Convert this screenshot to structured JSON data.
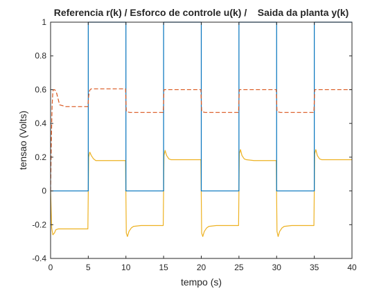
{
  "chart_data": {
    "type": "line",
    "title": "Referencia r(k) / Esforco de controle u(k) /    Saida da planta y(k)",
    "xlabel": "tempo (s)",
    "ylabel": "tensao (Volts)",
    "xlim": [
      0,
      40
    ],
    "ylim": [
      -0.4,
      1
    ],
    "xticks": [
      0,
      5,
      10,
      15,
      20,
      25,
      30,
      35,
      40
    ],
    "xtick_labels": [
      "0",
      "5",
      "10",
      "15",
      "20",
      "25",
      "30",
      "35",
      "40"
    ],
    "yticks": [
      -0.4,
      -0.2,
      0,
      0.2,
      0.4,
      0.6,
      0.8,
      1
    ],
    "ytick_labels": [
      "-0.4",
      "-0.2",
      "0",
      "0.2",
      "0.4",
      "0.6",
      "0.8",
      "1"
    ],
    "grid": false,
    "series": [
      {
        "name": "r(k)",
        "color": "#0072BD",
        "style": "solid",
        "x": [
          0,
          5,
          5,
          10,
          10,
          15,
          15,
          20,
          20,
          25,
          25,
          30,
          30,
          35,
          35,
          40
        ],
        "y": [
          0,
          0,
          1,
          1,
          0,
          0,
          1,
          1,
          0,
          0,
          1,
          1,
          0,
          0,
          1,
          1
        ]
      },
      {
        "name": "u(k)",
        "color": "#D95319",
        "style": "dashed",
        "x": [
          0,
          0.1,
          0.2,
          0.3,
          0.4,
          0.55,
          0.8,
          1.2,
          2,
          3,
          4,
          4.95,
          5.05,
          5.15,
          5.25,
          5.4,
          6,
          7,
          8,
          9,
          9.95,
          10.05,
          10.5,
          11,
          12,
          13,
          14,
          14.95,
          15.05,
          15.5,
          16,
          17,
          18,
          19,
          19.95,
          20.05,
          20.5,
          21,
          22,
          23,
          24,
          24.95,
          25.05,
          25.5,
          26,
          27,
          28,
          29,
          29.95,
          30.05,
          30.5,
          31,
          32,
          33,
          34,
          34.95,
          35.05,
          35.5,
          36,
          37,
          38,
          39,
          39.95,
          40
        ],
        "y": [
          0,
          0.3,
          0.5,
          0.59,
          0.6,
          0.6,
          0.58,
          0.51,
          0.5,
          0.5,
          0.5,
          0.5,
          0.56,
          0.59,
          0.6,
          0.605,
          0.605,
          0.605,
          0.605,
          0.605,
          0.605,
          0.47,
          0.465,
          0.465,
          0.465,
          0.465,
          0.465,
          0.465,
          0.6,
          0.6,
          0.6,
          0.6,
          0.6,
          0.6,
          0.6,
          0.47,
          0.465,
          0.465,
          0.465,
          0.465,
          0.465,
          0.465,
          0.6,
          0.6,
          0.6,
          0.6,
          0.6,
          0.6,
          0.6,
          0.47,
          0.465,
          0.465,
          0.465,
          0.465,
          0.465,
          0.465,
          0.6,
          0.6,
          0.6,
          0.6,
          0.6,
          0.6,
          0.6,
          0.6
        ]
      },
      {
        "name": "y(k)",
        "color": "#EDB120",
        "style": "solid",
        "x": [
          0,
          0.15,
          0.3,
          0.5,
          0.7,
          1,
          1.5,
          2,
          3,
          4,
          4.95,
          5.05,
          5.2,
          5.4,
          5.7,
          6,
          7,
          8,
          9,
          9.95,
          10.05,
          10.2,
          10.4,
          10.7,
          11,
          12,
          13,
          14,
          14.95,
          15.05,
          15.2,
          15.4,
          15.7,
          16,
          17,
          18,
          19,
          19.95,
          20.05,
          20.2,
          20.4,
          20.7,
          21,
          22,
          23,
          24,
          24.95,
          25.05,
          25.2,
          25.4,
          25.7,
          26,
          27,
          28,
          29,
          29.95,
          30.05,
          30.2,
          30.4,
          30.7,
          31,
          32,
          33,
          34,
          34.95,
          35.05,
          35.2,
          35.4,
          35.7,
          36,
          37,
          38,
          39,
          40
        ],
        "y": [
          0,
          -0.22,
          -0.26,
          -0.25,
          -0.23,
          -0.225,
          -0.225,
          -0.225,
          -0.225,
          -0.225,
          -0.225,
          0.2,
          0.23,
          0.21,
          0.19,
          0.18,
          0.18,
          0.18,
          0.18,
          0.18,
          -0.25,
          -0.27,
          -0.24,
          -0.22,
          -0.21,
          -0.205,
          -0.205,
          -0.205,
          -0.205,
          0.21,
          0.24,
          0.21,
          0.19,
          0.185,
          0.185,
          0.185,
          0.185,
          0.185,
          -0.25,
          -0.27,
          -0.24,
          -0.22,
          -0.21,
          -0.205,
          -0.205,
          -0.205,
          -0.205,
          0.22,
          0.245,
          0.21,
          0.19,
          0.185,
          0.18,
          0.18,
          0.18,
          0.18,
          -0.24,
          -0.27,
          -0.24,
          -0.22,
          -0.21,
          -0.205,
          -0.205,
          -0.205,
          -0.205,
          0.22,
          0.245,
          0.21,
          0.19,
          0.185,
          0.185,
          0.185,
          0.185,
          0.185
        ]
      }
    ]
  }
}
